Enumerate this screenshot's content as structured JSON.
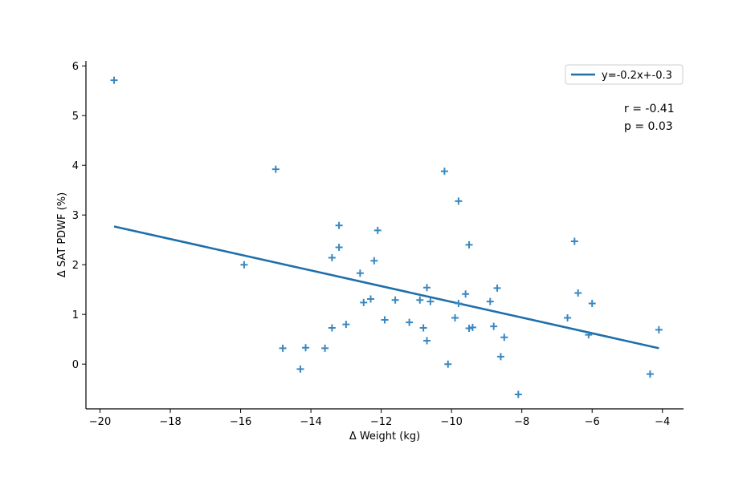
{
  "chart_data": {
    "type": "scatter",
    "xlabel": "Δ Weight (kg)",
    "ylabel": "Δ SAT PDWF (%)",
    "xlim": [
      -20.4,
      -3.4
    ],
    "ylim": [
      -0.9,
      6.1
    ],
    "xticks": [
      -20,
      -18,
      -16,
      -14,
      -12,
      -10,
      -8,
      -6,
      -4
    ],
    "xtick_labels": [
      "−20",
      "−18",
      "−16",
      "−14",
      "−12",
      "−10",
      "−8",
      "−6",
      "−4"
    ],
    "yticks": [
      0,
      1,
      2,
      3,
      4,
      5,
      6
    ],
    "ytick_labels": [
      "0",
      "1",
      "2",
      "3",
      "4",
      "5",
      "6"
    ],
    "grid": false,
    "marker": "plus",
    "point_color": "#3a87c0",
    "line_color": "#1f6fab",
    "points": [
      {
        "x": -19.6,
        "y": 5.71
      },
      {
        "x": -15.9,
        "y": 2.0
      },
      {
        "x": -15.0,
        "y": 3.92
      },
      {
        "x": -14.8,
        "y": 0.32
      },
      {
        "x": -14.3,
        "y": -0.1
      },
      {
        "x": -14.15,
        "y": 0.33
      },
      {
        "x": -13.6,
        "y": 0.32
      },
      {
        "x": -13.4,
        "y": 0.73
      },
      {
        "x": -13.4,
        "y": 2.14
      },
      {
        "x": -13.2,
        "y": 2.79
      },
      {
        "x": -13.2,
        "y": 2.35
      },
      {
        "x": -13.0,
        "y": 0.8
      },
      {
        "x": -12.6,
        "y": 1.83
      },
      {
        "x": -12.5,
        "y": 1.24
      },
      {
        "x": -12.3,
        "y": 1.31
      },
      {
        "x": -12.2,
        "y": 2.08
      },
      {
        "x": -12.1,
        "y": 2.69
      },
      {
        "x": -11.9,
        "y": 0.89
      },
      {
        "x": -11.6,
        "y": 1.29
      },
      {
        "x": -11.2,
        "y": 0.84
      },
      {
        "x": -10.9,
        "y": 1.29
      },
      {
        "x": -10.8,
        "y": 0.73
      },
      {
        "x": -10.7,
        "y": 1.54
      },
      {
        "x": -10.7,
        "y": 0.47
      },
      {
        "x": -10.6,
        "y": 1.26
      },
      {
        "x": -10.2,
        "y": 3.88
      },
      {
        "x": -10.1,
        "y": 0.0
      },
      {
        "x": -9.9,
        "y": 0.93
      },
      {
        "x": -9.8,
        "y": 3.28
      },
      {
        "x": -9.8,
        "y": 1.22
      },
      {
        "x": -9.6,
        "y": 1.41
      },
      {
        "x": -9.5,
        "y": 2.4
      },
      {
        "x": -9.5,
        "y": 0.72
      },
      {
        "x": -9.4,
        "y": 0.74
      },
      {
        "x": -8.9,
        "y": 1.26
      },
      {
        "x": -8.8,
        "y": 0.76
      },
      {
        "x": -8.7,
        "y": 1.53
      },
      {
        "x": -8.6,
        "y": 0.15
      },
      {
        "x": -8.5,
        "y": 0.54
      },
      {
        "x": -8.1,
        "y": -0.61
      },
      {
        "x": -6.7,
        "y": 0.93
      },
      {
        "x": -6.5,
        "y": 2.47
      },
      {
        "x": -6.4,
        "y": 1.43
      },
      {
        "x": -6.1,
        "y": 0.59
      },
      {
        "x": -6.0,
        "y": 1.22
      },
      {
        "x": -4.35,
        "y": -0.2
      },
      {
        "x": -4.1,
        "y": 0.69
      }
    ],
    "fit_line": {
      "label": "y=-0.2x+-0.3",
      "x": [
        -19.6,
        -4.1
      ],
      "y": [
        2.77,
        0.32
      ]
    },
    "stats": {
      "r": "r = -0.41",
      "p": "p = 0.03"
    },
    "legend_position": "top-right"
  }
}
